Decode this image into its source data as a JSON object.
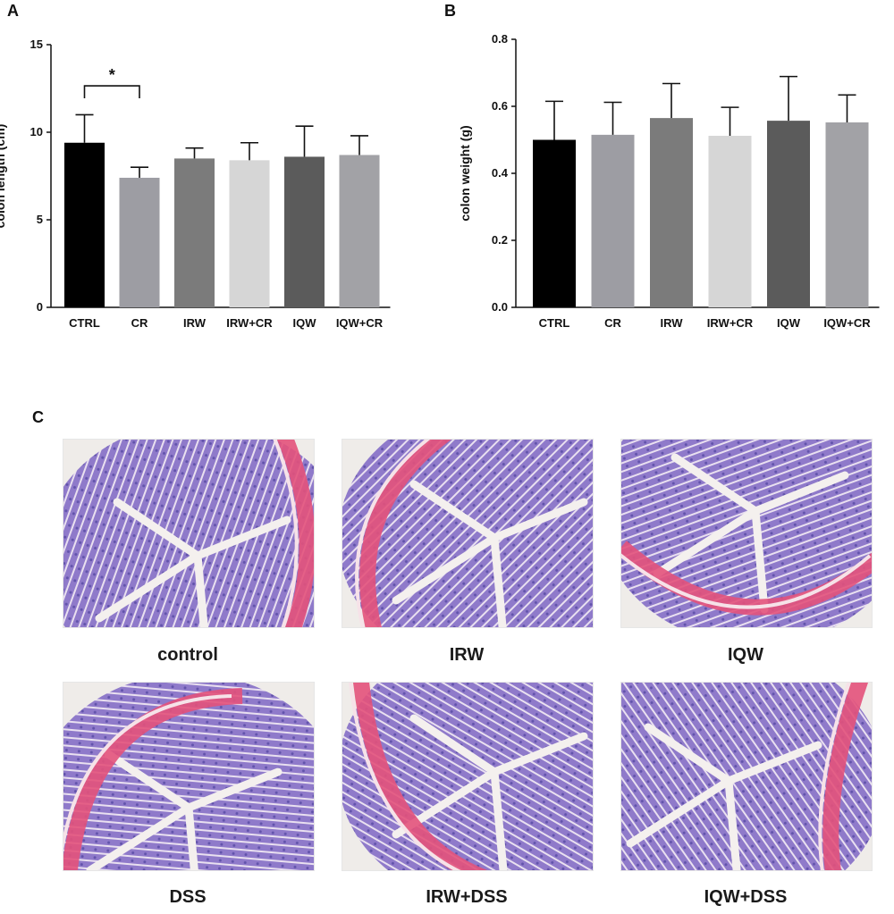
{
  "panels": {
    "a": "A",
    "b": "B",
    "c": "C"
  },
  "chart_data": [
    {
      "type": "bar",
      "categories": [
        "CTRL",
        "CR",
        "IRW",
        "IRW+CR",
        "IQW",
        "IQW+CR"
      ],
      "values": [
        9.4,
        7.4,
        8.5,
        8.4,
        8.6,
        8.7
      ],
      "errors": [
        1.6,
        0.6,
        0.6,
        1.0,
        1.75,
        1.1
      ],
      "colors": [
        "#000000",
        "#9d9da3",
        "#7b7b7b",
        "#d6d6d6",
        "#5b5b5b",
        "#a2a2a6"
      ],
      "ylabel": "colon length (cm)",
      "ylim": [
        0,
        15
      ],
      "yticks": [
        0,
        5,
        10,
        15
      ],
      "significance": {
        "from": "CTRL",
        "to": "CR",
        "label": "*"
      }
    },
    {
      "type": "bar",
      "categories": [
        "CTRL",
        "CR",
        "IRW",
        "IRW+CR",
        "IQW",
        "IQW+CR"
      ],
      "values": [
        0.5,
        0.515,
        0.565,
        0.512,
        0.557,
        0.552
      ],
      "errors": [
        0.115,
        0.097,
        0.103,
        0.085,
        0.132,
        0.082
      ],
      "colors": [
        "#000000",
        "#9d9da3",
        "#7b7b7b",
        "#d6d6d6",
        "#5b5b5b",
        "#a2a2a6"
      ],
      "ylabel": "colon weight (g)",
      "ylim": [
        0,
        0.8
      ],
      "yticks": [
        "0.0",
        "0.2",
        "0.4",
        "0.6",
        "0.8"
      ]
    }
  ],
  "histology": {
    "images": [
      {
        "label": "control"
      },
      {
        "label": "IRW"
      },
      {
        "label": "IQW"
      },
      {
        "label": "DSS"
      },
      {
        "label": "IRW+DSS"
      },
      {
        "label": "IQW+DSS"
      }
    ]
  }
}
